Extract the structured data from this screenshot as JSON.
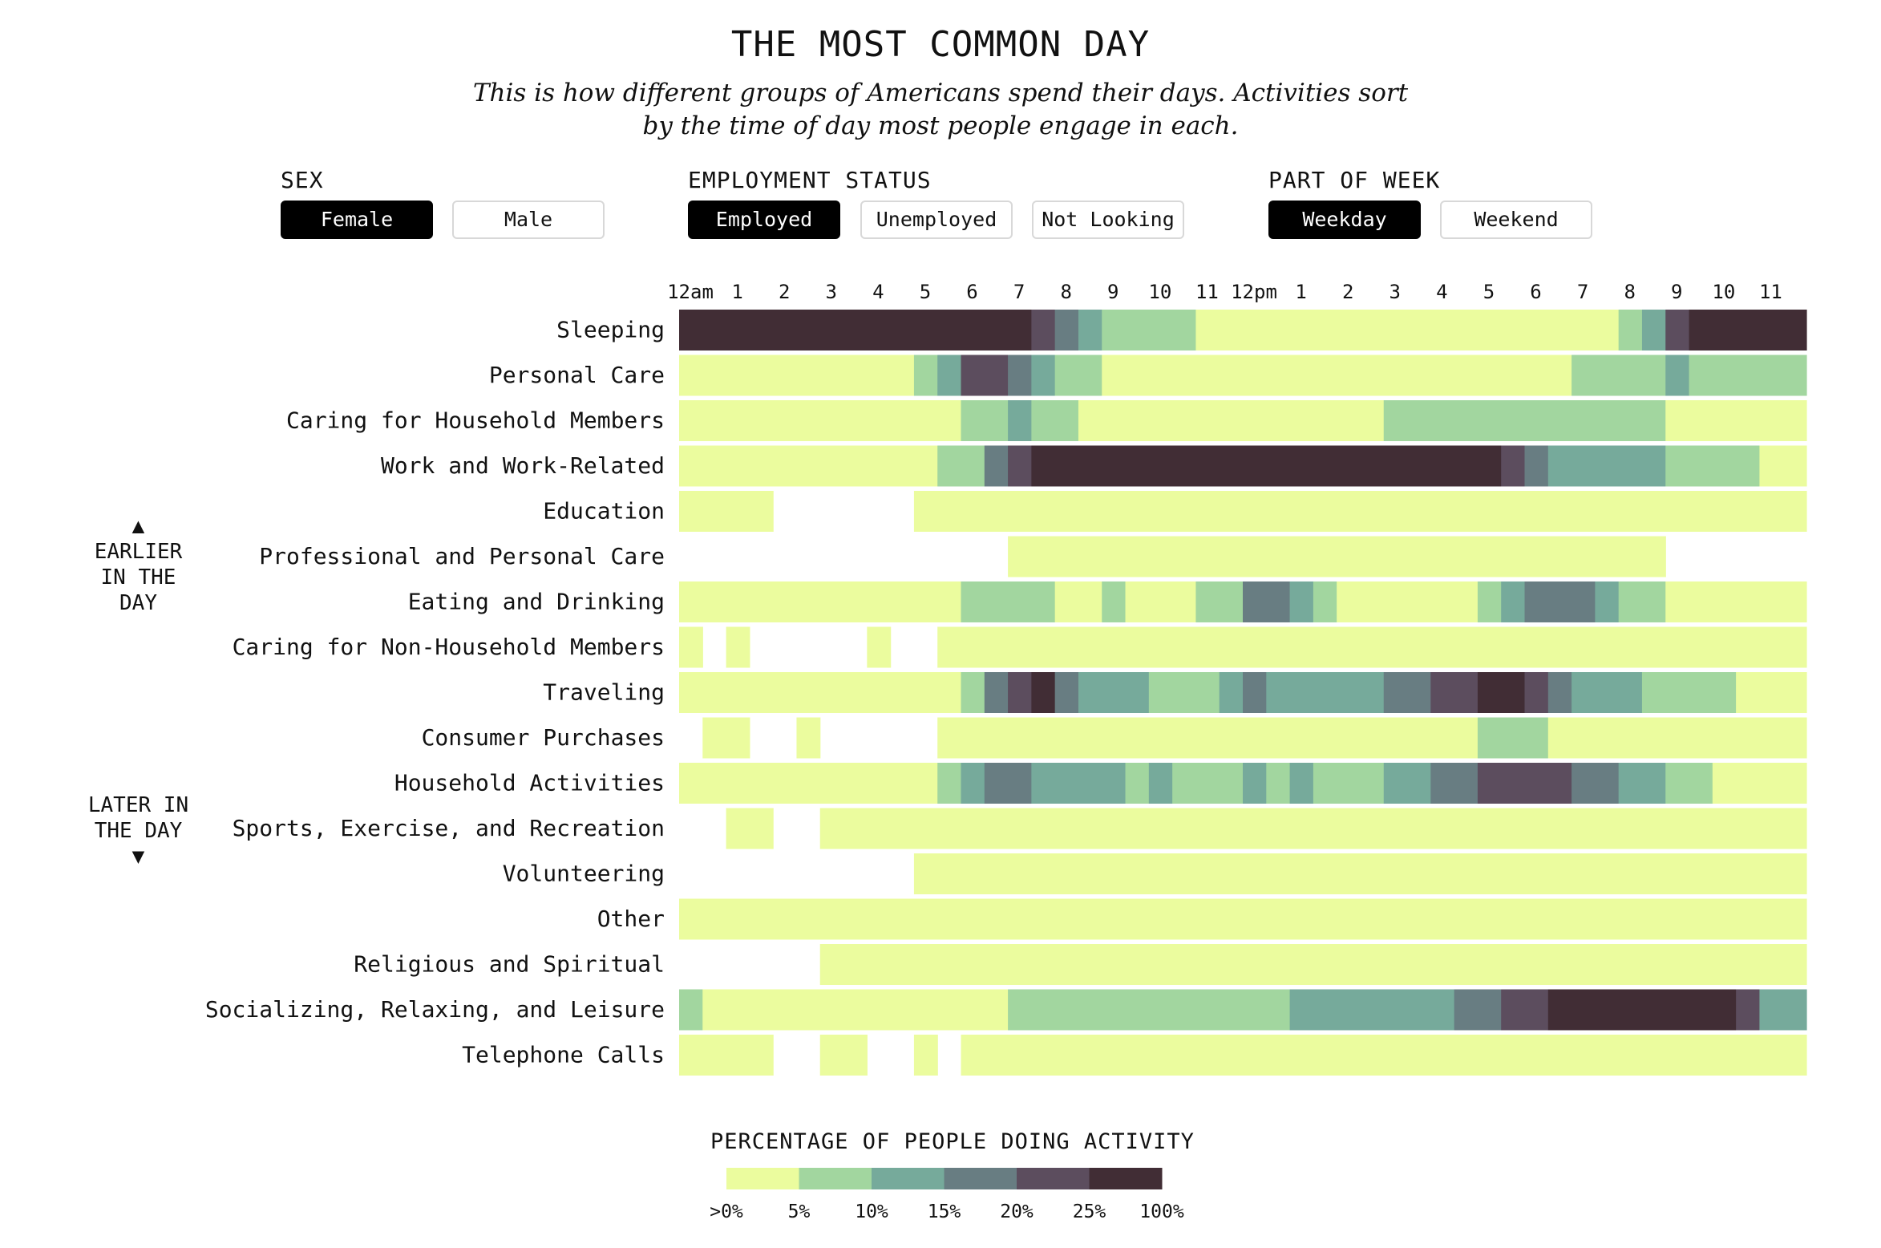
{
  "header": {
    "title": "THE MOST COMMON DAY",
    "subtitle_line1": "This is how different groups of Americans spend their days. Activities sort",
    "subtitle_line2": "by the time of day most people engage in each."
  },
  "filters": {
    "sex": {
      "label": "SEX",
      "options": [
        "Female",
        "Male"
      ],
      "selected": "Female"
    },
    "employment": {
      "label": "EMPLOYMENT STATUS",
      "options": [
        "Employed",
        "Unemployed",
        "Not Looking"
      ],
      "selected": "Employed"
    },
    "week": {
      "label": "PART OF WEEK",
      "options": [
        "Weekday",
        "Weekend"
      ],
      "selected": "Weekday"
    }
  },
  "side_notes": {
    "earlier": {
      "arrow": "▲",
      "line1": "EARLIER",
      "line2": "IN THE",
      "line3": "DAY"
    },
    "later": {
      "line1": "LATER IN",
      "line2": "THE DAY",
      "arrow": "▼"
    }
  },
  "colors": {
    "levels": [
      "#ebfc9e",
      "#a2d69f",
      "#76aa9b",
      "#687d82",
      "#5c4d5e",
      "#412d35"
    ]
  },
  "chart_data": {
    "type": "heatmap",
    "x": [
      "12am",
      "1",
      "2",
      "3",
      "4",
      "5",
      "6",
      "7",
      "8",
      "9",
      "10",
      "11",
      "12pm",
      "1",
      "2",
      "3",
      "4",
      "5",
      "6",
      "7",
      "8",
      "9",
      "10",
      "11"
    ],
    "slots_per_hour": 2,
    "legend": {
      "title": "PERCENTAGE OF PEOPLE DOING ACTIVITY",
      "labels": [
        ">0%",
        "5%",
        "10%",
        "15%",
        "20%",
        "25%",
        "100%"
      ]
    },
    "rows": [
      {
        "name": "Sleeping",
        "runs": [
          [
            0,
            15,
            5
          ],
          [
            15,
            16,
            4
          ],
          [
            16,
            17,
            3
          ],
          [
            17,
            18,
            2
          ],
          [
            18,
            22,
            1
          ],
          [
            22,
            40,
            0
          ],
          [
            40,
            41,
            1
          ],
          [
            41,
            42,
            2
          ],
          [
            42,
            43,
            4
          ],
          [
            43,
            48,
            5
          ]
        ]
      },
      {
        "name": "Personal Care",
        "runs": [
          [
            0,
            10,
            0
          ],
          [
            10,
            11,
            1
          ],
          [
            11,
            12,
            2
          ],
          [
            12,
            14,
            4
          ],
          [
            14,
            15,
            3
          ],
          [
            15,
            16,
            2
          ],
          [
            16,
            18,
            1
          ],
          [
            18,
            38,
            0
          ],
          [
            38,
            42,
            1
          ],
          [
            42,
            43,
            2
          ],
          [
            43,
            48,
            1
          ]
        ]
      },
      {
        "name": "Caring for Household Members",
        "runs": [
          [
            0,
            12,
            0
          ],
          [
            12,
            14,
            1
          ],
          [
            14,
            15,
            2
          ],
          [
            15,
            17,
            1
          ],
          [
            17,
            30,
            0
          ],
          [
            30,
            42,
            1
          ],
          [
            42,
            48,
            0
          ]
        ]
      },
      {
        "name": "Work and Work-Related",
        "runs": [
          [
            0,
            11,
            0
          ],
          [
            11,
            13,
            1
          ],
          [
            13,
            14,
            3
          ],
          [
            14,
            15,
            4
          ],
          [
            15,
            35,
            5
          ],
          [
            35,
            36,
            4
          ],
          [
            36,
            37,
            3
          ],
          [
            37,
            42,
            2
          ],
          [
            42,
            46,
            1
          ],
          [
            46,
            48,
            0
          ]
        ]
      },
      {
        "name": "Education",
        "runs": [
          [
            0,
            4,
            0
          ],
          [
            10,
            48,
            0
          ]
        ]
      },
      {
        "name": "Professional and Personal Care",
        "runs": [
          [
            14,
            42,
            0
          ]
        ]
      },
      {
        "name": "Eating and Drinking",
        "runs": [
          [
            0,
            12,
            0
          ],
          [
            12,
            16,
            1
          ],
          [
            16,
            18,
            0
          ],
          [
            18,
            19,
            1
          ],
          [
            19,
            22,
            0
          ],
          [
            22,
            24,
            1
          ],
          [
            24,
            26,
            3
          ],
          [
            26,
            27,
            2
          ],
          [
            27,
            28,
            1
          ],
          [
            28,
            34,
            0
          ],
          [
            34,
            35,
            1
          ],
          [
            35,
            36,
            2
          ],
          [
            36,
            39,
            3
          ],
          [
            39,
            40,
            2
          ],
          [
            40,
            42,
            1
          ],
          [
            42,
            48,
            0
          ]
        ]
      },
      {
        "name": "Caring for Non-Household Members",
        "runs": [
          [
            0,
            1,
            0
          ],
          [
            2,
            3,
            0
          ],
          [
            8,
            9,
            0
          ],
          [
            11,
            48,
            0
          ]
        ]
      },
      {
        "name": "Traveling",
        "runs": [
          [
            0,
            12,
            0
          ],
          [
            12,
            13,
            1
          ],
          [
            13,
            14,
            3
          ],
          [
            14,
            15,
            4
          ],
          [
            15,
            16,
            5
          ],
          [
            16,
            17,
            3
          ],
          [
            17,
            20,
            2
          ],
          [
            20,
            23,
            1
          ],
          [
            23,
            24,
            2
          ],
          [
            24,
            25,
            3
          ],
          [
            25,
            30,
            2
          ],
          [
            30,
            32,
            3
          ],
          [
            32,
            34,
            4
          ],
          [
            34,
            36,
            5
          ],
          [
            36,
            37,
            4
          ],
          [
            37,
            38,
            3
          ],
          [
            38,
            41,
            2
          ],
          [
            41,
            45,
            1
          ],
          [
            45,
            48,
            0
          ]
        ]
      },
      {
        "name": "Consumer Purchases",
        "runs": [
          [
            1,
            3,
            0
          ],
          [
            5,
            6,
            0
          ],
          [
            11,
            34,
            0
          ],
          [
            34,
            37,
            1
          ],
          [
            37,
            48,
            0
          ]
        ]
      },
      {
        "name": "Household Activities",
        "runs": [
          [
            0,
            11,
            0
          ],
          [
            11,
            12,
            1
          ],
          [
            12,
            13,
            2
          ],
          [
            13,
            15,
            3
          ],
          [
            15,
            19,
            2
          ],
          [
            19,
            20,
            1
          ],
          [
            20,
            21,
            2
          ],
          [
            21,
            24,
            1
          ],
          [
            24,
            25,
            2
          ],
          [
            25,
            26,
            1
          ],
          [
            26,
            27,
            2
          ],
          [
            27,
            30,
            1
          ],
          [
            30,
            32,
            2
          ],
          [
            32,
            34,
            3
          ],
          [
            34,
            38,
            4
          ],
          [
            38,
            40,
            3
          ],
          [
            40,
            42,
            2
          ],
          [
            42,
            44,
            1
          ],
          [
            44,
            48,
            0
          ]
        ]
      },
      {
        "name": "Sports, Exercise, and Recreation",
        "runs": [
          [
            2,
            4,
            0
          ],
          [
            6,
            48,
            0
          ]
        ]
      },
      {
        "name": "Volunteering",
        "runs": [
          [
            10,
            48,
            0
          ]
        ]
      },
      {
        "name": "Other",
        "runs": [
          [
            0,
            48,
            0
          ]
        ]
      },
      {
        "name": "Religious and Spiritual",
        "runs": [
          [
            6,
            48,
            0
          ]
        ]
      },
      {
        "name": "Socializing, Relaxing, and Leisure",
        "runs": [
          [
            0,
            1,
            1
          ],
          [
            1,
            14,
            0
          ],
          [
            14,
            26,
            1
          ],
          [
            26,
            33,
            2
          ],
          [
            33,
            35,
            3
          ],
          [
            35,
            37,
            4
          ],
          [
            37,
            45,
            5
          ],
          [
            45,
            46,
            4
          ],
          [
            46,
            48,
            2
          ]
        ]
      },
      {
        "name": "Telephone Calls",
        "runs": [
          [
            0,
            4,
            0
          ],
          [
            6,
            8,
            0
          ],
          [
            10,
            11,
            0
          ],
          [
            12,
            48,
            0
          ]
        ]
      }
    ]
  }
}
